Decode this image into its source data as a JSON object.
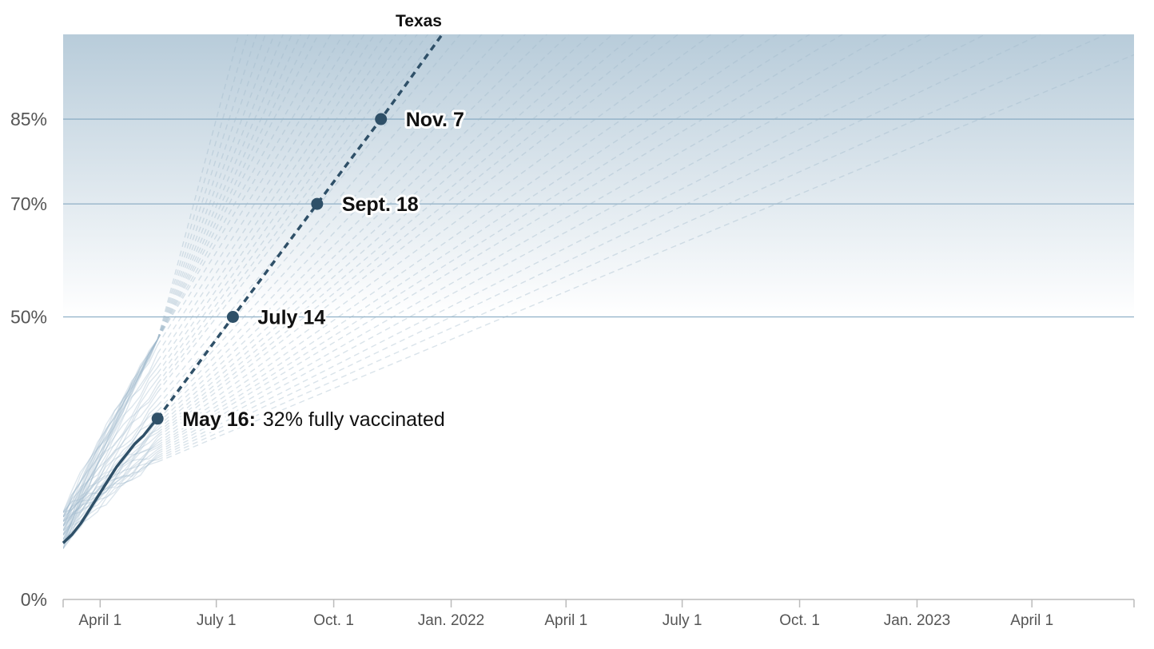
{
  "colors": {
    "band_top": "#b8ccda",
    "band_bottom": "#ffffff",
    "threshold_line": "#8fb0c6",
    "highlight": "#2f5068",
    "other_states": "#9fb8ca",
    "axis": "#bbbbbb"
  },
  "chart_data": {
    "type": "line",
    "title": "",
    "xlabel": "",
    "ylabel": "",
    "x_range": [
      "2021-03-03",
      "2023-06-20"
    ],
    "y_range": [
      0,
      1
    ],
    "y_ticks": [
      {
        "value": 0,
        "label": "0%"
      },
      {
        "value": 0.5,
        "label": "50%"
      },
      {
        "value": 0.7,
        "label": "70%"
      },
      {
        "value": 0.85,
        "label": "85%"
      }
    ],
    "threshold_lines": [
      0.5,
      0.7,
      0.85
    ],
    "x_ticks": [
      {
        "date": "2021-04-01",
        "label": "April 1"
      },
      {
        "date": "2021-07-01",
        "label": "July 1"
      },
      {
        "date": "2021-10-01",
        "label": "Oct. 1"
      },
      {
        "date": "2022-01-01",
        "label": "Jan. 2022"
      },
      {
        "date": "2022-04-01",
        "label": "April 1"
      },
      {
        "date": "2022-07-01",
        "label": "July 1"
      },
      {
        "date": "2022-10-01",
        "label": "Oct. 1"
      },
      {
        "date": "2023-01-01",
        "label": "Jan. 2023"
      },
      {
        "date": "2023-04-01",
        "label": "April 1"
      }
    ],
    "highlight_series": {
      "name": "Texas",
      "actual": [
        {
          "x": "2021-03-03",
          "y": 0.1
        },
        {
          "x": "2021-03-10",
          "y": 0.115
        },
        {
          "x": "2021-03-17",
          "y": 0.135
        },
        {
          "x": "2021-03-24",
          "y": 0.16
        },
        {
          "x": "2021-03-31",
          "y": 0.185
        },
        {
          "x": "2021-04-07",
          "y": 0.21
        },
        {
          "x": "2021-04-14",
          "y": 0.235
        },
        {
          "x": "2021-04-21",
          "y": 0.255
        },
        {
          "x": "2021-04-28",
          "y": 0.275
        },
        {
          "x": "2021-05-05",
          "y": 0.29
        },
        {
          "x": "2021-05-12",
          "y": 0.31
        },
        {
          "x": "2021-05-16",
          "y": 0.32
        }
      ],
      "projection": [
        {
          "x": "2021-05-16",
          "y": 0.32
        },
        {
          "x": "2021-07-14",
          "y": 0.5
        },
        {
          "x": "2021-09-18",
          "y": 0.7
        },
        {
          "x": "2021-11-07",
          "y": 0.85
        },
        {
          "x": "2021-12-25",
          "y": 1.0
        }
      ]
    },
    "other_states_projected_dates_at_85pct": [
      "2021-07-01",
      "2021-07-06",
      "2021-07-11",
      "2021-07-16",
      "2021-07-21",
      "2021-07-26",
      "2021-07-31",
      "2021-08-05",
      "2021-08-10",
      "2021-08-15",
      "2021-08-22",
      "2021-08-29",
      "2021-09-05",
      "2021-09-12",
      "2021-09-19",
      "2021-09-26",
      "2021-10-03",
      "2021-10-10",
      "2021-10-17",
      "2021-10-24",
      "2021-10-31",
      "2021-11-14",
      "2021-11-28",
      "2021-12-12",
      "2021-12-26",
      "2022-01-09",
      "2022-01-23",
      "2022-02-06",
      "2022-02-20",
      "2022-03-06",
      "2022-03-20",
      "2022-04-03",
      "2022-04-24",
      "2022-05-15",
      "2022-06-05",
      "2022-06-26",
      "2022-07-17",
      "2022-08-14",
      "2022-09-11",
      "2022-10-16",
      "2022-11-20",
      "2023-01-01",
      "2023-02-19"
    ],
    "annotations": [
      {
        "date": "2021-05-16",
        "y": 0.32,
        "bold": "May 16:",
        "normal": "32% fully vaccinated"
      },
      {
        "date": "2021-07-14",
        "y": 0.5,
        "bold": "July 14",
        "normal": ""
      },
      {
        "date": "2021-09-18",
        "y": 0.7,
        "bold": "Sept. 18",
        "normal": ""
      },
      {
        "date": "2021-11-07",
        "y": 0.85,
        "bold": "Nov. 7",
        "normal": ""
      }
    ]
  }
}
